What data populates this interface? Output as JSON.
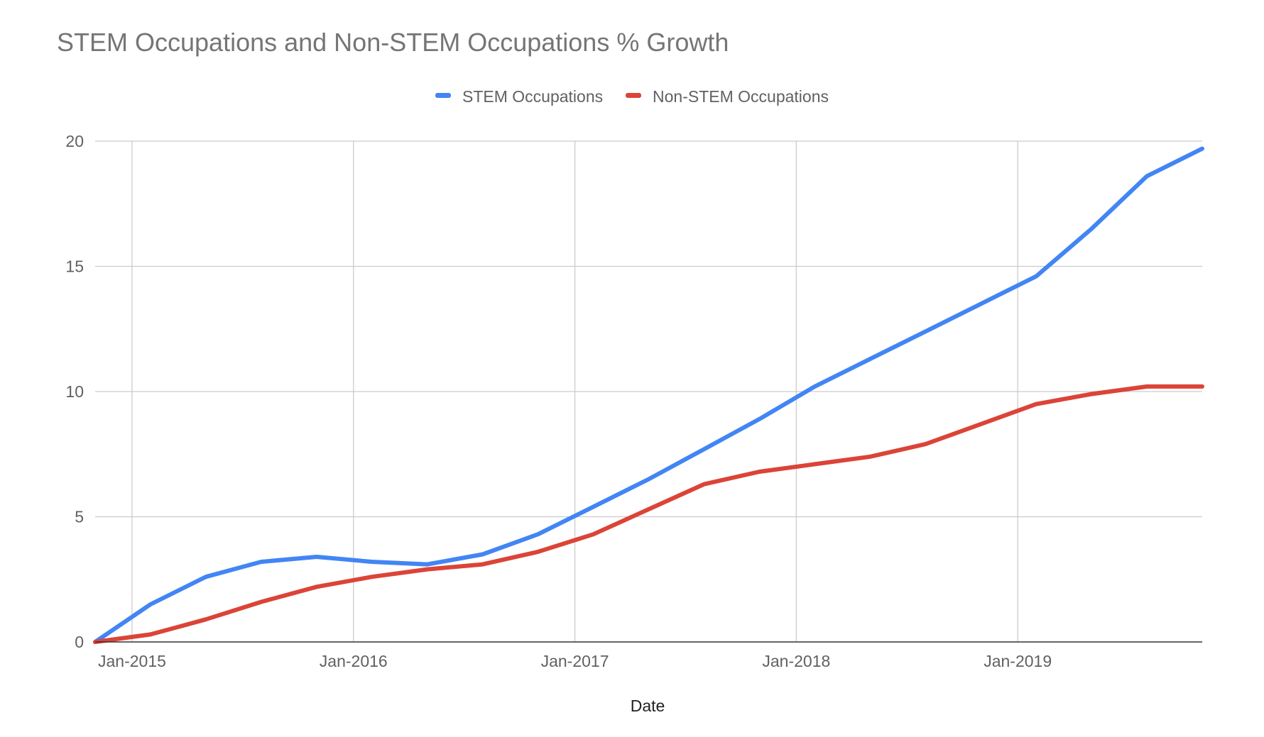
{
  "chart_data": {
    "type": "line",
    "title": "STEM Occupations and Non-STEM Occupations % Growth",
    "xlabel": "Date",
    "ylabel": "",
    "ylim": [
      0,
      20
    ],
    "yticks": [
      0,
      5,
      10,
      15,
      20
    ],
    "xlim": [
      "2014-11",
      "2019-11"
    ],
    "xticks": [
      {
        "label": "Jan-2015",
        "date": "2015-01"
      },
      {
        "label": "Jan-2016",
        "date": "2016-01"
      },
      {
        "label": "Jan-2017",
        "date": "2017-01"
      },
      {
        "label": "Jan-2018",
        "date": "2018-01"
      },
      {
        "label": "Jan-2019",
        "date": "2019-01"
      }
    ],
    "grid": true,
    "legend_position": "top",
    "x": [
      "2014-11",
      "2015-02",
      "2015-05",
      "2015-08",
      "2015-11",
      "2016-02",
      "2016-05",
      "2016-08",
      "2016-11",
      "2017-02",
      "2017-05",
      "2017-08",
      "2017-11",
      "2018-02",
      "2018-05",
      "2018-08",
      "2018-11",
      "2019-02",
      "2019-05",
      "2019-08",
      "2019-11"
    ],
    "series": [
      {
        "name": "STEM Occupations",
        "color": "#4285F4",
        "values": [
          0,
          1.5,
          2.6,
          3.2,
          3.4,
          3.2,
          3.1,
          3.5,
          4.3,
          5.4,
          6.5,
          7.7,
          8.9,
          10.2,
          11.3,
          12.4,
          13.5,
          14.6,
          16.5,
          18.6,
          19.7
        ]
      },
      {
        "name": "Non-STEM Occupations",
        "color": "#DB4437",
        "values": [
          0,
          0.3,
          0.9,
          1.6,
          2.2,
          2.6,
          2.9,
          3.1,
          3.6,
          4.3,
          5.3,
          6.3,
          6.8,
          7.1,
          7.4,
          7.9,
          8.7,
          9.5,
          9.9,
          10.2,
          10.2
        ]
      }
    ]
  }
}
